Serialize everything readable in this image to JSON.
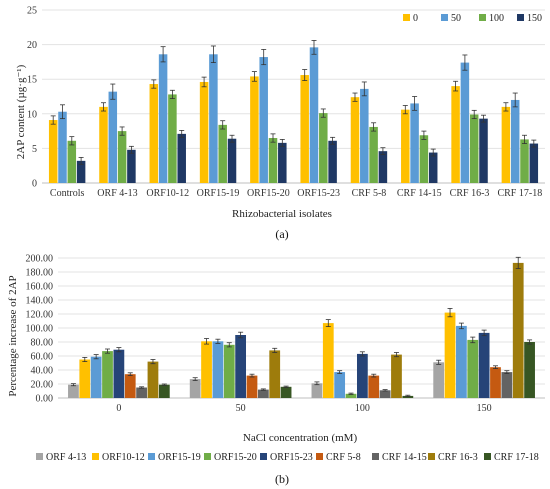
{
  "chart_data": [
    {
      "type": "bar",
      "title": "",
      "panel_label": "(a)",
      "xlabel": "Rhizobacterial isolates",
      "ylabel": "2AP content (µg·g⁻¹)",
      "ylim": [
        0,
        25
      ],
      "yticks": [
        0,
        5,
        10,
        15,
        20,
        25
      ],
      "grid": true,
      "legend_position": "top-right",
      "categories": [
        "Controls",
        "ORF 4-13",
        "ORF10-12",
        "ORF15-19",
        "ORF15-20",
        "ORF15-23",
        "CRF 5-8",
        "CRF 14-15",
        "CRF 16-3",
        "CRF 17-18"
      ],
      "series": [
        {
          "name": "0",
          "color": "#FFC000",
          "values": [
            9.1,
            11.0,
            14.3,
            14.6,
            15.4,
            15.6,
            12.4,
            10.6,
            14.0,
            11.0
          ],
          "errors": [
            0.6,
            0.6,
            0.6,
            0.7,
            0.7,
            0.8,
            0.6,
            0.6,
            0.7,
            0.6
          ]
        },
        {
          "name": "50",
          "color": "#5B9BD5",
          "values": [
            10.3,
            13.2,
            18.6,
            18.6,
            18.2,
            19.6,
            13.6,
            11.5,
            17.4,
            12.0
          ],
          "errors": [
            1.0,
            1.1,
            1.1,
            1.2,
            1.1,
            1.0,
            1.0,
            1.0,
            1.1,
            1.0
          ]
        },
        {
          "name": "100",
          "color": "#70AD47",
          "values": [
            6.1,
            7.5,
            12.8,
            8.4,
            6.5,
            10.1,
            8.1,
            6.9,
            9.9,
            6.3
          ],
          "errors": [
            0.6,
            0.6,
            0.6,
            0.6,
            0.6,
            0.6,
            0.6,
            0.6,
            0.6,
            0.6
          ]
        },
        {
          "name": "150",
          "color": "#1F3864",
          "values": [
            3.2,
            4.8,
            7.1,
            6.4,
            5.8,
            6.1,
            4.6,
            4.4,
            9.3,
            5.7
          ],
          "errors": [
            0.5,
            0.5,
            0.5,
            0.5,
            0.5,
            0.5,
            0.5,
            0.5,
            0.5,
            0.5
          ]
        }
      ]
    },
    {
      "type": "bar",
      "title": "",
      "panel_label": "(b)",
      "xlabel": "NaCl concentration (mM)",
      "ylabel": "Percentage increase of 2AP",
      "ylim": [
        0,
        200
      ],
      "yticks": [
        "0.00",
        "20.00",
        "40.00",
        "60.00",
        "80.00",
        "100.00",
        "120.00",
        "140.00",
        "160.00",
        "180.00",
        "200.00"
      ],
      "grid": true,
      "legend_position": "bottom",
      "categories": [
        "0",
        "50",
        "100",
        "150"
      ],
      "series": [
        {
          "name": "ORF 4-13",
          "color": "#A5A5A5",
          "values": [
            19,
            27,
            21,
            51
          ],
          "errors": [
            1.5,
            2,
            2,
            3
          ]
        },
        {
          "name": "ORF10-12",
          "color": "#FFC000",
          "values": [
            55,
            81,
            107,
            122
          ],
          "errors": [
            3,
            4,
            5,
            6
          ]
        },
        {
          "name": "ORF15-19",
          "color": "#5B9BD5",
          "values": [
            59,
            81,
            37,
            103
          ],
          "errors": [
            3,
            3,
            2,
            4
          ]
        },
        {
          "name": "ORF15-20",
          "color": "#70AD47",
          "values": [
            67,
            76,
            6,
            83
          ],
          "errors": [
            3,
            3,
            1,
            4
          ]
        },
        {
          "name": "ORF15-23",
          "color": "#264478",
          "values": [
            69,
            90,
            63,
            93
          ],
          "errors": [
            3,
            4,
            3,
            4
          ]
        },
        {
          "name": "CRF 5-8",
          "color": "#C55A11",
          "values": [
            34,
            32,
            32,
            44
          ],
          "errors": [
            2,
            2,
            2,
            2
          ]
        },
        {
          "name": "CRF 14-15",
          "color": "#636363",
          "values": [
            15,
            12,
            11,
            37
          ],
          "errors": [
            1,
            1,
            1,
            2
          ]
        },
        {
          "name": "CRF 16-3",
          "color": "#9E7C0C",
          "values": [
            52,
            68,
            62,
            193
          ],
          "errors": [
            3,
            3,
            3,
            8
          ]
        },
        {
          "name": "CRF 17-18",
          "color": "#375623",
          "values": [
            19,
            16,
            3,
            80
          ],
          "errors": [
            1,
            1,
            1,
            3
          ]
        }
      ]
    }
  ]
}
